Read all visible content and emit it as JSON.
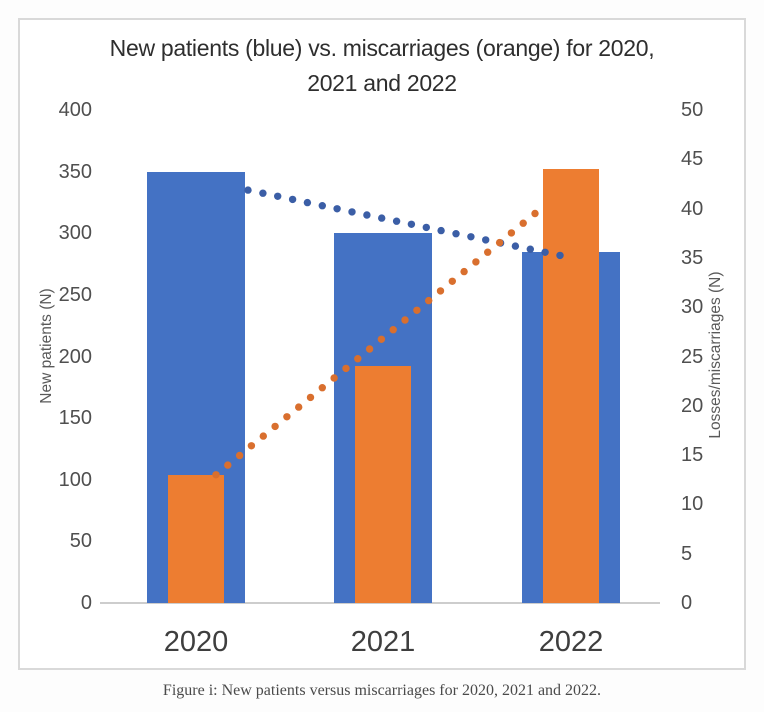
{
  "figure": {
    "caption": "Figure i: New patients versus miscarriages for 2020, 2021 and 2022."
  },
  "chart_data": {
    "type": "bar",
    "title": "New patients (blue) vs. miscarriages (orange) for 2020, 2021 and 2022",
    "title_line1": "New patients (blue) vs. miscarriages (orange) for 2020,",
    "title_line2": "2021 and 2022",
    "categories": [
      "2020",
      "2021",
      "2022"
    ],
    "series": [
      {
        "name": "New patients",
        "axis": "left",
        "color": "#4472C4",
        "values": [
          350,
          300,
          285
        ]
      },
      {
        "name": "Miscarriages",
        "axis": "right",
        "color": "#ED7D31",
        "values": [
          13,
          24,
          44
        ]
      }
    ],
    "trendlines": [
      {
        "series": "New patients",
        "axis": "left",
        "style": "dotted",
        "color": "#3B5EA6",
        "start_value": 335,
        "end_value": 282
      },
      {
        "series": "Miscarriages",
        "axis": "right",
        "style": "dotted",
        "color": "#D96F2E",
        "start_value": 13,
        "end_value": 39.5
      }
    ],
    "left_axis": {
      "label": "New patients (N)",
      "min": 0,
      "max": 400,
      "ticks": [
        0,
        50,
        100,
        150,
        200,
        250,
        300,
        350,
        400
      ]
    },
    "right_axis": {
      "label": "Losses/miscarriages (N)",
      "min": 0,
      "max": 50,
      "ticks": [
        0,
        5,
        10,
        15,
        20,
        25,
        30,
        35,
        40,
        45,
        50
      ]
    },
    "grid": false,
    "legend": "none"
  }
}
